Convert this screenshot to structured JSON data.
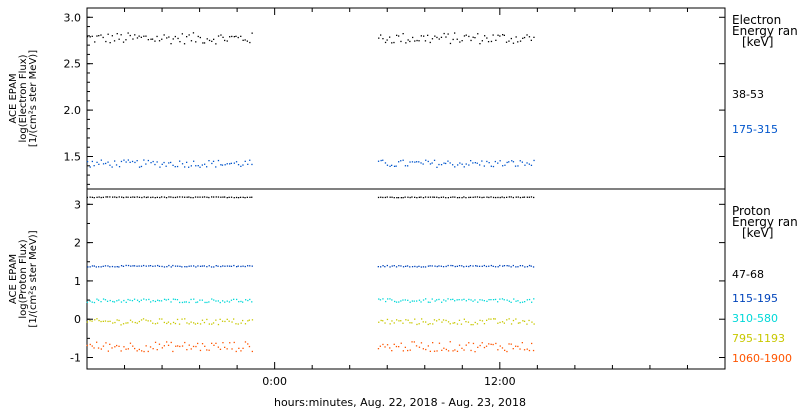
{
  "chart_data": [
    {
      "type": "scatter",
      "panel": "electron",
      "ylabel_lines": [
        "ACE EPAM",
        "log(Electron Flux)",
        "[1/(cm²s ster MeV)]"
      ],
      "ylim": [
        1.15,
        3.1
      ],
      "yticks": [
        "1.5",
        "2.0",
        "2.5",
        "3.0"
      ],
      "legend_title": [
        "Electron",
        "Energy ran",
        "[keV]"
      ],
      "grid": false,
      "series": [
        {
          "name": "38-53",
          "color": "#000000",
          "level": 2.78,
          "spread": 0.06
        },
        {
          "name": "175-315",
          "color": "#0055cc",
          "level": 1.43,
          "spread": 0.04
        }
      ]
    },
    {
      "type": "scatter",
      "panel": "proton",
      "ylabel_lines": [
        "ACE EPAM",
        "log(Proton Flux)",
        "[1/(cm²s ster MeV)]"
      ],
      "ylim": [
        -1.3,
        3.4
      ],
      "yticks": [
        "-1",
        "0",
        "1",
        "2",
        "3"
      ],
      "legend_title": [
        "Proton",
        "Energy ran",
        "[keV]"
      ],
      "grid": false,
      "series": [
        {
          "name": "47-68",
          "color": "#000000",
          "level": 3.2,
          "spread": 0.01
        },
        {
          "name": "115-195",
          "color": "#0044bb",
          "level": 1.4,
          "spread": 0.02
        },
        {
          "name": "310-580",
          "color": "#00d8d8",
          "level": 0.5,
          "spread": 0.05
        },
        {
          "name": "795-1193",
          "color": "#c8c800",
          "level": -0.05,
          "spread": 0.08
        },
        {
          "name": "1060-1900",
          "color": "#ff5500",
          "level": -0.7,
          "spread": 0.13
        }
      ]
    }
  ],
  "x_axis": {
    "range_hours": [
      -10,
      24
    ],
    "tick_labels": [
      "0:00",
      "12:00"
    ],
    "data_gap_hours": [
      [
        -10,
        -1.2
      ],
      [
        5.5,
        13.8
      ]
    ],
    "xlabel": "hours:minutes, Aug. 22, 2018 - Aug. 23, 2018"
  },
  "colors": {
    "frame": "#000000",
    "background": "#ffffff"
  }
}
